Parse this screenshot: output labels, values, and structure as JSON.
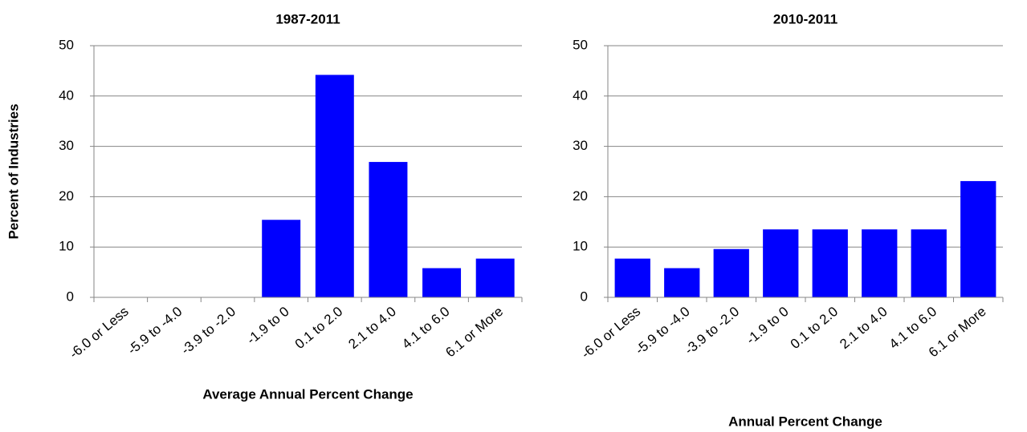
{
  "chart_data": [
    {
      "type": "bar",
      "title": "1987-2011",
      "y_label": "Percent of Industries",
      "x_label": "Average Annual Percent Change",
      "categories": [
        "-6.0 or Less",
        "-5.9 to -4.0",
        "-3.9 to -2.0",
        "-1.9 to 0",
        "0.1 to 2.0",
        "2.1 to 4.0",
        "4.1 to 6.0",
        "6.1 or More"
      ],
      "values": [
        0,
        0,
        0,
        15.4,
        44.2,
        26.9,
        5.8,
        7.7
      ],
      "color": "#0000ff",
      "ylim": [
        0,
        50
      ],
      "yticks": [
        0,
        10,
        20,
        30,
        40,
        50
      ],
      "grid": true
    },
    {
      "type": "bar",
      "title": "2010-2011",
      "x_label": "Annual Percent Change",
      "categories": [
        "-6.0 or Less",
        "-5.9 to -4.0",
        "-3.9 to -2.0",
        "-1.9 to 0",
        "0.1 to 2.0",
        "2.1 to 4.0",
        "4.1 to 6.0",
        "6.1 or More"
      ],
      "values": [
        7.7,
        5.8,
        9.6,
        13.5,
        13.5,
        13.5,
        13.5,
        23.1
      ],
      "color": "#0000ff",
      "ylim": [
        0,
        50
      ],
      "yticks": [
        0,
        10,
        20,
        30,
        40,
        50
      ],
      "grid": true
    }
  ]
}
